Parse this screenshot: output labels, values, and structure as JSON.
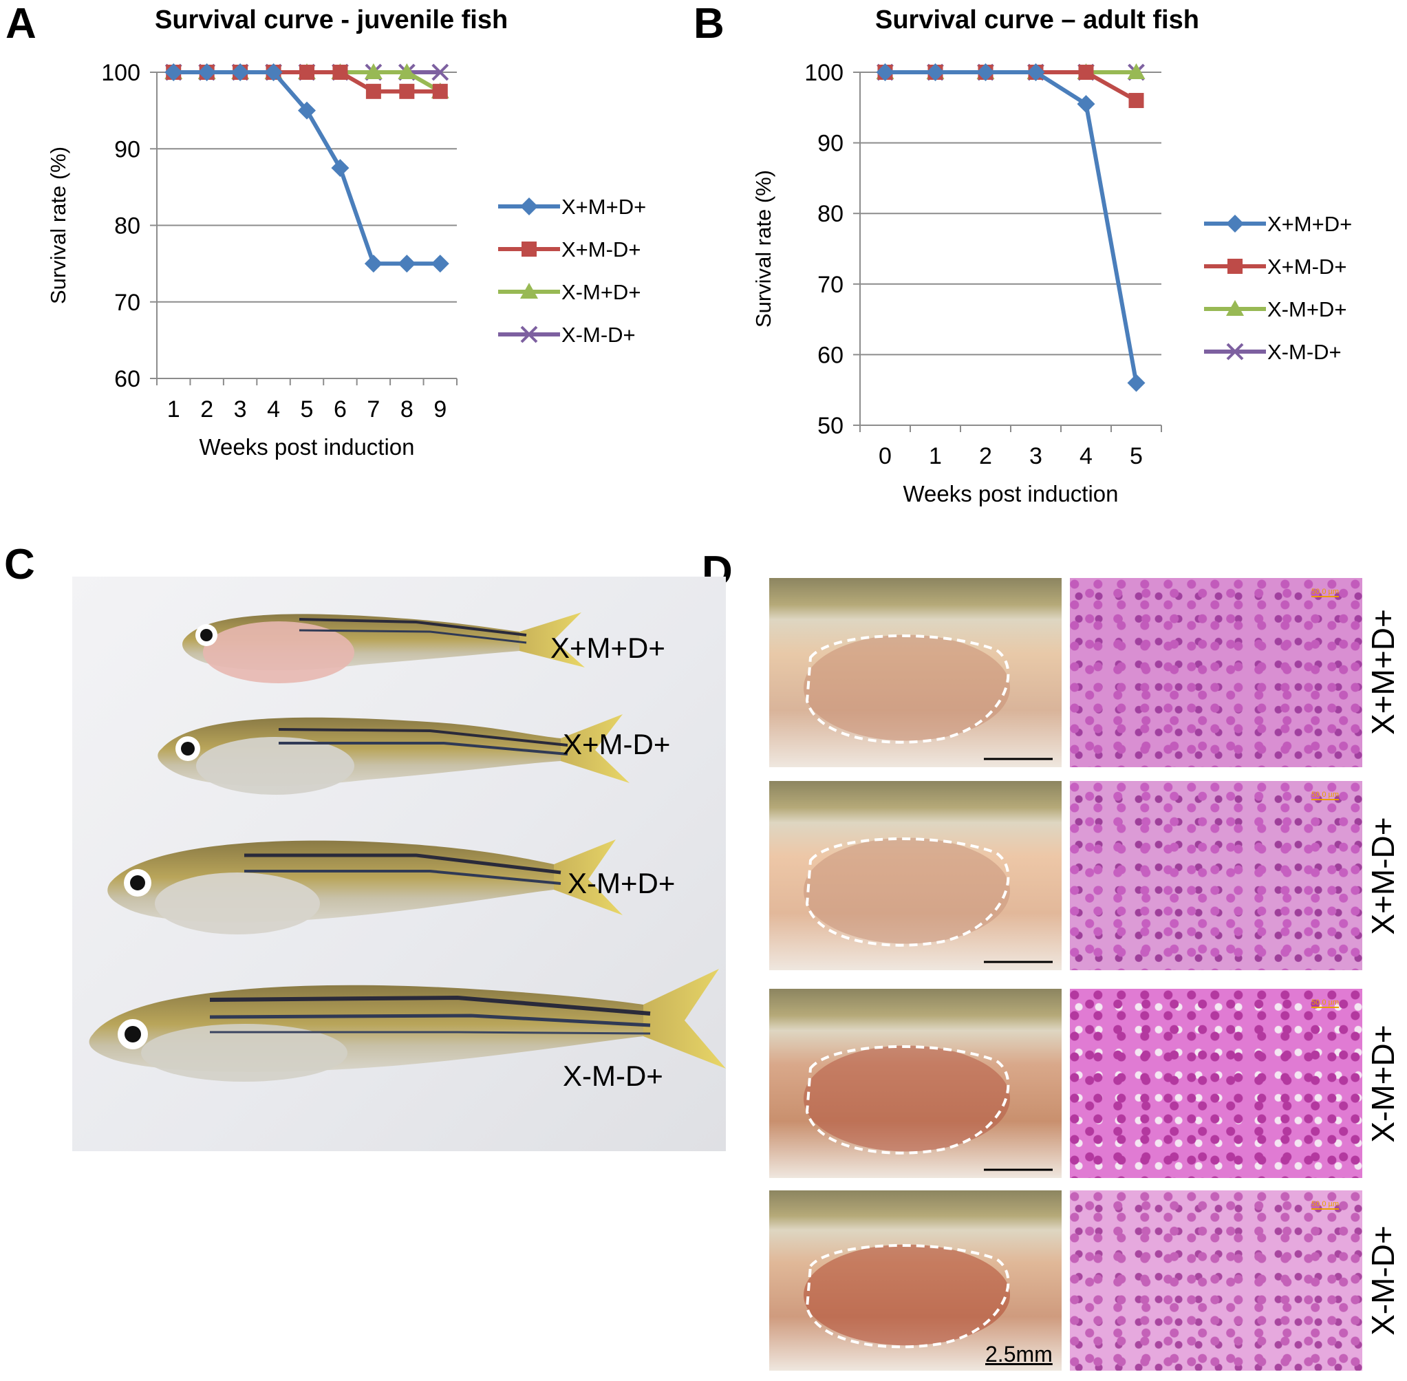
{
  "panels": {
    "a": {
      "letter": "A"
    },
    "b": {
      "letter": "B"
    },
    "c": {
      "letter": "C"
    },
    "d": {
      "letter": "D"
    }
  },
  "chart_data": [
    {
      "id": "A",
      "type": "line",
      "title": "Survival curve - juvenile fish",
      "xlabel": "Weeks post induction",
      "ylabel": "Survival rate (%)",
      "x": [
        1,
        2,
        3,
        4,
        5,
        6,
        7,
        8,
        9
      ],
      "ylim": [
        60,
        100
      ],
      "yticks": [
        60,
        70,
        80,
        90,
        100
      ],
      "grid": true,
      "legend_position": "right",
      "series": [
        {
          "name": "X+M+D+",
          "color": "#4a7ebb",
          "marker": "diamond",
          "values": [
            100,
            100,
            100,
            100,
            95,
            87.5,
            75,
            75,
            75
          ]
        },
        {
          "name": "X+M-D+",
          "color": "#be4b48",
          "marker": "square",
          "values": [
            100,
            100,
            100,
            100,
            100,
            100,
            97.5,
            97.5,
            97.5
          ]
        },
        {
          "name": "X-M+D+",
          "color": "#98b954",
          "marker": "triangle",
          "values": [
            100,
            100,
            100,
            100,
            100,
            100,
            100,
            100,
            97.5
          ]
        },
        {
          "name": "X-M-D+",
          "color": "#7d60a0",
          "marker": "x",
          "values": [
            100,
            100,
            100,
            100,
            100,
            100,
            100,
            100,
            100
          ]
        }
      ]
    },
    {
      "id": "B",
      "type": "line",
      "title": "Survival curve – adult fish",
      "xlabel": "Weeks post induction",
      "ylabel": "Survival rate (%)",
      "x": [
        0,
        1,
        2,
        3,
        4,
        5
      ],
      "ylim": [
        50,
        100
      ],
      "yticks": [
        50,
        60,
        70,
        80,
        90,
        100
      ],
      "grid": true,
      "legend_position": "right",
      "series": [
        {
          "name": "X+M+D+",
          "color": "#4a7ebb",
          "marker": "diamond",
          "values": [
            100,
            100,
            100,
            100,
            95.5,
            56
          ]
        },
        {
          "name": "X+M-D+",
          "color": "#be4b48",
          "marker": "square",
          "values": [
            100,
            100,
            100,
            100,
            100,
            96
          ]
        },
        {
          "name": "X-M+D+",
          "color": "#98b954",
          "marker": "triangle",
          "values": [
            100,
            100,
            100,
            100,
            100,
            100
          ]
        },
        {
          "name": "X-M-D+",
          "color": "#7d60a0",
          "marker": "x",
          "values": [
            100,
            100,
            100,
            100,
            100,
            100
          ]
        }
      ]
    }
  ],
  "photo_c": {
    "labels": [
      "X+M+D+",
      "X+M-D+",
      "X-M+D+",
      "X-M-D+"
    ]
  },
  "panel_d": {
    "rows": [
      {
        "genotype": "X+M+D+"
      },
      {
        "genotype": "X+M-D+"
      },
      {
        "genotype": "X-M+D+"
      },
      {
        "genotype": "X-M-D+"
      }
    ],
    "scale_bar_label": "2.5mm",
    "histology_scale_label": "50.0 µm"
  }
}
